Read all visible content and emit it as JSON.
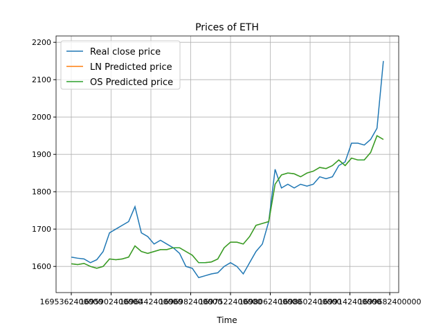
{
  "chart_data": {
    "type": "line",
    "title": "Prices of ETH",
    "x_label": "Time",
    "x": [
      1695362400000,
      1695448800000,
      1695535200000,
      1695621600000,
      1695708000000,
      1695794400000,
      1695880800000,
      1695967200000,
      1696053600000,
      1696140000000,
      1696226400000,
      1696312800000,
      1696399200000,
      1696485600000,
      1696572000000,
      1696658400000,
      1696744800000,
      1696831200000,
      1696917600000,
      1697004000000,
      1697090400000,
      1697176800000,
      1697263200000,
      1697349600000,
      1697436000000,
      1697522400000,
      1697608800000,
      1697695200000,
      1697781600000,
      1697868000000,
      1697954400000,
      1698040800000,
      1698127200000,
      1698213600000,
      1698300000000,
      1698386400000,
      1698472800000,
      1698559200000,
      1698645600000,
      1698732000000,
      1698818400000,
      1698904800000,
      1698991200000,
      1699077600000,
      1699164000000,
      1699250400000,
      1699336800000,
      1699423200000,
      1699509600000,
      1699596000000
    ],
    "series": [
      {
        "name": "Real close price",
        "color": "#1f77b4",
        "values": [
          1625,
          1622,
          1620,
          1610,
          1618,
          1640,
          1690,
          1700,
          1710,
          1720,
          1760,
          1690,
          1680,
          1660,
          1670,
          1660,
          1650,
          1635,
          1600,
          1595,
          1570,
          1575,
          1580,
          1583,
          1600,
          1610,
          1600,
          1580,
          1610,
          1640,
          1660,
          1720,
          1860,
          1810,
          1820,
          1810,
          1820,
          1815,
          1820,
          1840,
          1835,
          1840,
          1870,
          1880,
          1930,
          1930,
          1925,
          1940,
          1970,
          2150
        ]
      },
      {
        "name": "LN Predicted price",
        "color": "#ff7f0e",
        "values": [
          1607,
          1605,
          1608,
          1600,
          1595,
          1600,
          1620,
          1618,
          1620,
          1625,
          1655,
          1640,
          1635,
          1640,
          1645,
          1645,
          1650,
          1650,
          1640,
          1630,
          1610,
          1610,
          1612,
          1620,
          1650,
          1665,
          1665,
          1660,
          1680,
          1710,
          1715,
          1720,
          1820,
          1845,
          1850,
          1848,
          1840,
          1850,
          1855,
          1865,
          1862,
          1870,
          1885,
          1870,
          1890,
          1885,
          1885,
          1905,
          1950,
          1940
        ]
      },
      {
        "name": "OS Predicted price",
        "color": "#2ca02c",
        "values": [
          1607,
          1605,
          1608,
          1600,
          1595,
          1600,
          1620,
          1618,
          1620,
          1625,
          1655,
          1640,
          1635,
          1640,
          1645,
          1645,
          1650,
          1650,
          1640,
          1630,
          1610,
          1610,
          1612,
          1620,
          1650,
          1665,
          1665,
          1660,
          1680,
          1710,
          1715,
          1720,
          1820,
          1845,
          1850,
          1848,
          1840,
          1850,
          1855,
          1865,
          1862,
          1870,
          1885,
          1870,
          1890,
          1885,
          1885,
          1905,
          1950,
          1940
        ]
      }
    ],
    "xlim": [
      1695155800000,
      1699804000000
    ],
    "xticks": [
      1695362400000,
      1695902400000,
      1696442400000,
      1696982400000,
      1697522400000,
      1698062400000,
      1698602400000,
      1699142400000,
      1699682400000
    ],
    "ylim": [
      1530,
      2217
    ],
    "yticks": [
      1600,
      1700,
      1800,
      1900,
      2000,
      2100,
      2200
    ],
    "grid": true,
    "legend": "upper left"
  }
}
